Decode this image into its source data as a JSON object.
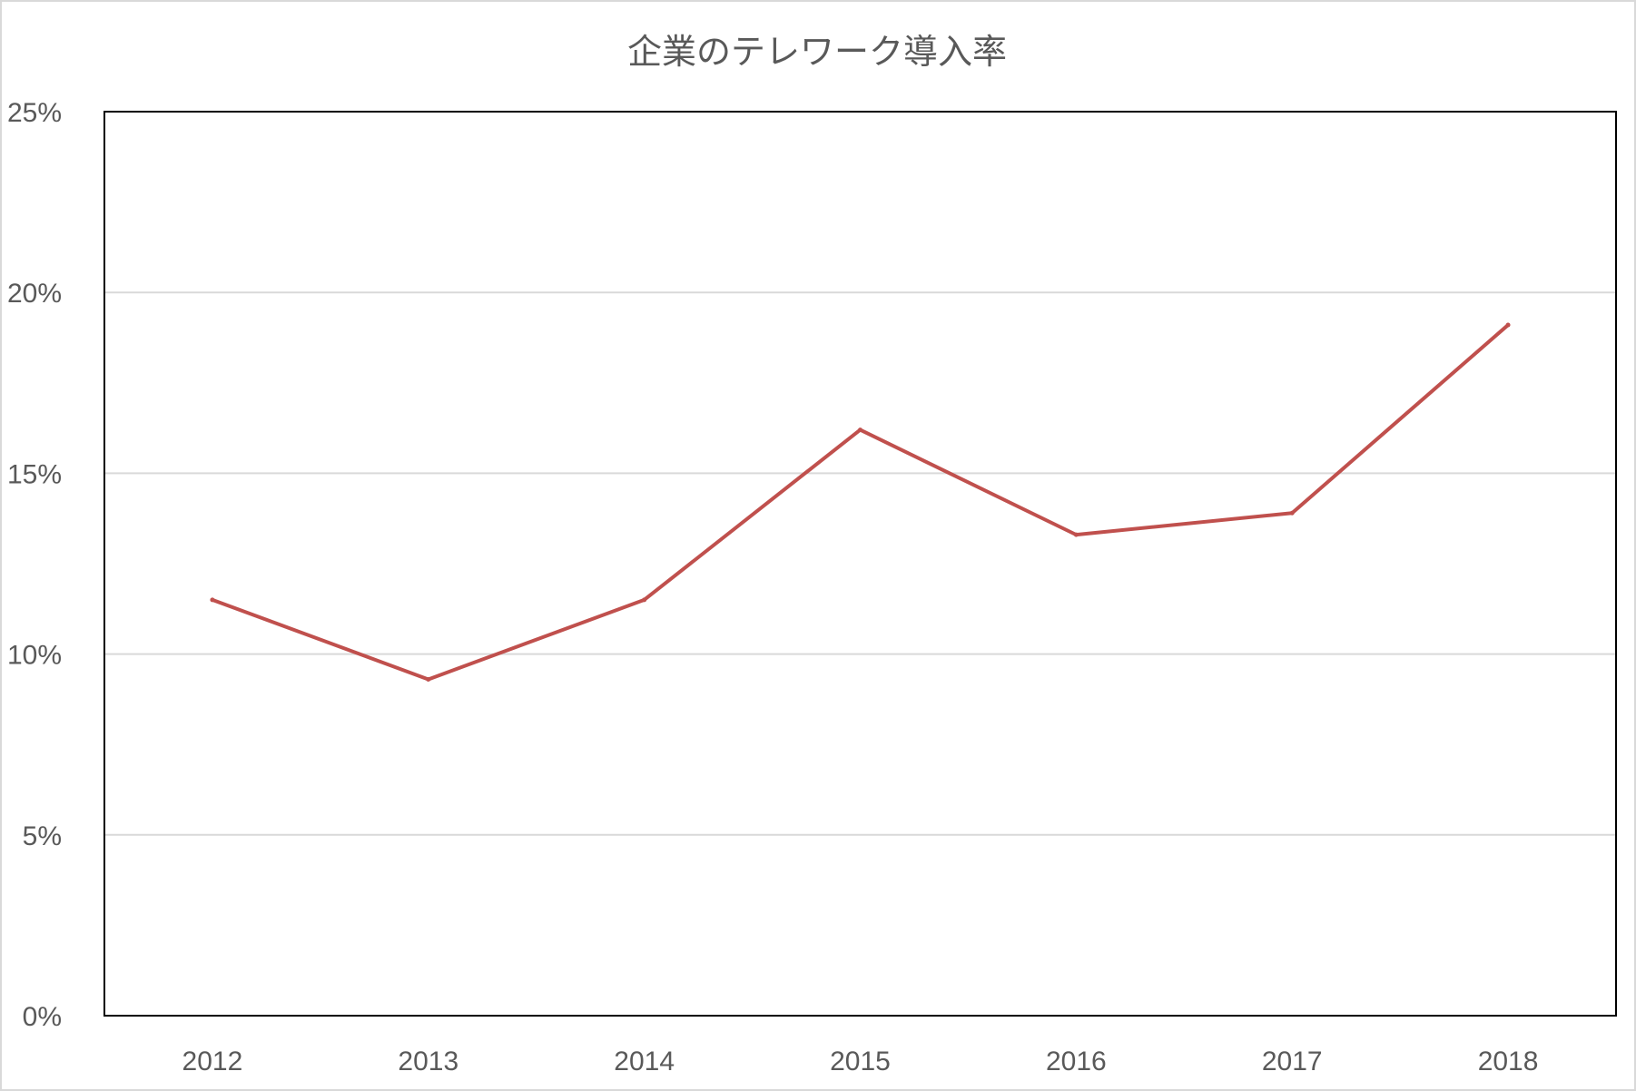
{
  "chart_data": {
    "type": "line",
    "title": "企業のテレワーク導入率",
    "categories": [
      "2012",
      "2013",
      "2014",
      "2015",
      "2016",
      "2017",
      "2018"
    ],
    "series": [
      {
        "values": [
          11.5,
          9.3,
          11.5,
          16.2,
          13.3,
          13.9,
          19.1
        ],
        "color": "#c0504d"
      }
    ],
    "ylim": [
      0,
      25
    ],
    "yticks": [
      0,
      5,
      10,
      15,
      20,
      25
    ],
    "ytick_labels": [
      "0%",
      "5%",
      "10%",
      "15%",
      "20%",
      "25%"
    ],
    "xlabel": "",
    "ylabel": "",
    "grid": true,
    "legend": "none",
    "colors": {
      "gridline": "#d9d9d9",
      "axis": "#000000",
      "text": "#595959"
    }
  }
}
